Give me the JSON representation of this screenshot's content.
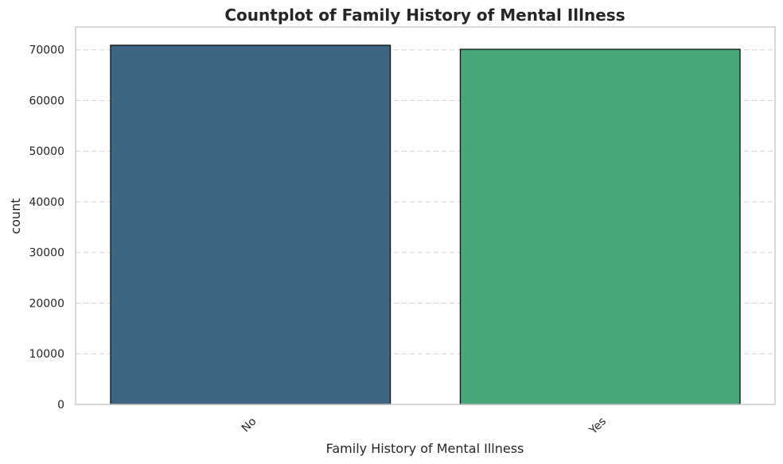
{
  "chart_data": {
    "type": "bar",
    "title": "Countplot of Family History of Mental Illness",
    "xlabel": "Family History of Mental Illness",
    "ylabel": "count",
    "categories": [
      "No",
      "Yes"
    ],
    "values": [
      70900,
      70100
    ],
    "colors": [
      "#3e6581",
      "#47a778"
    ],
    "ylim": [
      0,
      74500
    ],
    "yticks": [
      0,
      10000,
      20000,
      30000,
      40000,
      50000,
      60000,
      70000
    ],
    "ytick_labels": [
      "0",
      "10000",
      "20000",
      "30000",
      "40000",
      "50000",
      "60000",
      "70000"
    ],
    "grid": "horizontal dashed",
    "x_tick_rotation": "45 degrees"
  }
}
